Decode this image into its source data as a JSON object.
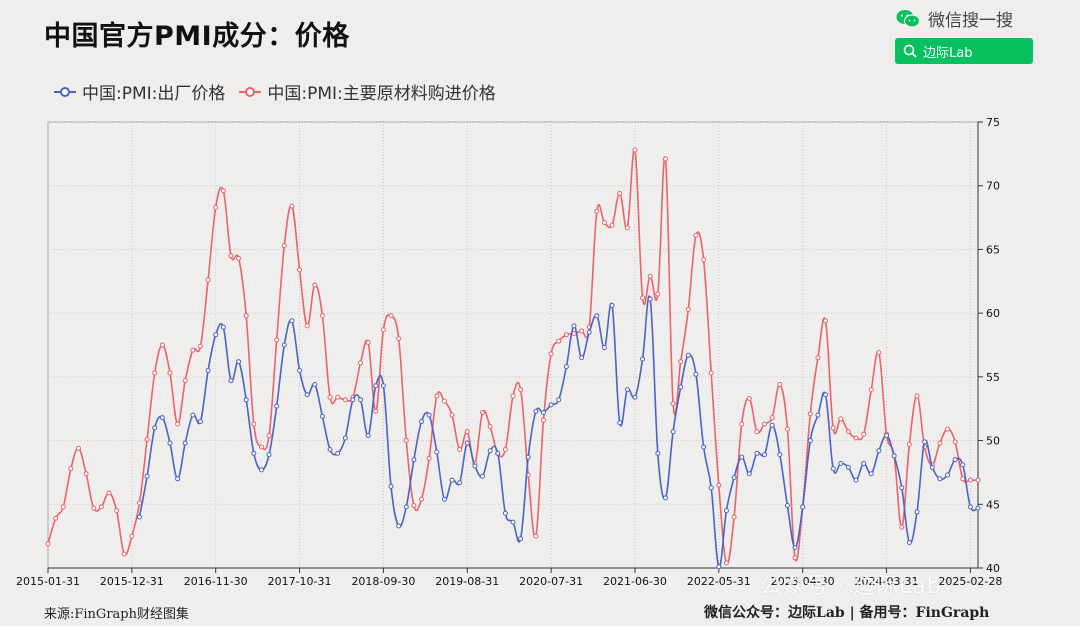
{
  "title": "中国官方PMI成分：价格",
  "wechat_search_label": "微信搜一搜",
  "search_button_text": "边际Lab",
  "footer_source": "来源:FinGraph财经图集",
  "footer_account": "微信公众号：边际Lab  |  备用号：FinGraph",
  "watermark_text": "公众号 · 边际Lab",
  "colors": {
    "blue": "#4a64c4",
    "red": "#e8646a",
    "wechat_green": "#07c160"
  },
  "chart_data": {
    "type": "line",
    "title": "中国官方PMI成分：价格",
    "x_tick_labels": [
      "2015-01-31",
      "2015-12-31",
      "2016-11-30",
      "2017-10-31",
      "2018-09-30",
      "2019-08-31",
      "2020-07-31",
      "2021-06-30",
      "2022-05-31",
      "2023-04-30",
      "2024-03-31",
      "2025-02-28"
    ],
    "x_start": "2015-01",
    "ylim": [
      40,
      75
    ],
    "yticks": [
      40,
      45,
      50,
      55,
      60,
      65,
      70,
      75
    ],
    "y_axis_side": "right",
    "grid": true,
    "legend_position": "top-left",
    "series": [
      {
        "name": "中国:PMI:出厂价格",
        "color": "#4a64c4",
        "values": [
          null,
          null,
          null,
          null,
          null,
          null,
          null,
          null,
          null,
          null,
          null,
          null,
          44.0,
          47.2,
          51.0,
          51.8,
          49.8,
          47.0,
          49.8,
          52.0,
          51.5,
          55.5,
          58.3,
          58.9,
          54.7,
          56.2,
          53.2,
          49.0,
          47.7,
          48.9,
          52.7,
          57.5,
          59.4,
          55.5,
          53.6,
          54.4,
          51.9,
          49.3,
          49.0,
          50.2,
          53.2,
          53.2,
          50.4,
          54.3,
          54.3,
          46.4,
          43.3,
          44.8,
          48.5,
          51.5,
          52.0,
          49.1,
          45.4,
          46.9,
          46.7,
          49.8,
          48.0,
          47.2,
          49.2,
          49.0,
          44.3,
          43.6,
          42.3,
          48.7,
          52.3,
          52.2,
          52.8,
          53.2,
          55.8,
          59.0,
          56.5,
          58.5,
          59.8,
          57.3,
          60.6,
          51.4,
          54.0,
          53.4,
          56.4,
          61.1,
          49.0,
          45.5,
          50.7,
          54.2,
          56.7,
          55.2,
          49.5,
          46.3,
          40.1,
          44.5,
          47.1,
          48.7,
          47.4,
          49.0,
          48.9,
          51.2,
          48.9,
          44.9,
          41.6,
          44.8,
          50.0,
          52.0,
          53.6,
          47.8,
          48.2,
          47.9,
          46.9,
          48.2,
          47.4,
          49.2,
          50.4,
          48.8,
          46.3,
          42.0,
          44.4,
          49.9,
          47.9,
          47.0,
          47.3,
          48.5,
          48.1,
          44.8,
          44.7
        ]
      },
      {
        "name": "中国:PMI:主要原材料购进价格",
        "color": "#e8646a",
        "values": [
          41.9,
          43.9,
          44.8,
          47.8,
          49.4,
          47.4,
          44.7,
          44.8,
          45.9,
          44.5,
          41.1,
          42.5,
          45.1,
          50.1,
          55.3,
          57.5,
          55.3,
          51.3,
          54.7,
          57.1,
          57.4,
          62.6,
          68.3,
          69.6,
          64.5,
          64.3,
          59.8,
          51.3,
          49.5,
          50.4,
          57.9,
          65.3,
          68.4,
          63.4,
          59.0,
          62.2,
          59.8,
          53.4,
          53.4,
          53.2,
          53.4,
          56.1,
          57.7,
          52.3,
          58.7,
          59.8,
          58.0,
          50.0,
          44.9,
          45.4,
          48.6,
          53.5,
          53.1,
          52.0,
          49.3,
          50.7,
          48.2,
          52.2,
          51.1,
          49.0,
          49.3,
          53.5,
          54.0,
          47.3,
          42.5,
          51.6,
          56.8,
          57.8,
          58.3,
          58.4,
          58.6,
          58.9,
          68.0,
          67.1,
          66.9,
          69.4,
          66.7,
          72.8,
          61.2,
          62.9,
          61.5,
          72.1,
          52.9,
          56.2,
          60.3,
          66.1,
          64.2,
          55.3,
          46.5,
          40.4,
          44.0,
          51.3,
          53.3,
          50.7,
          51.3,
          51.8,
          54.4,
          50.9,
          40.8,
          44.8,
          52.1,
          56.5,
          59.4,
          51.0,
          51.7,
          50.7,
          50.2,
          50.5,
          54.0,
          56.9,
          50.5,
          48.8,
          43.2,
          49.7,
          53.5,
          49.5,
          48.1,
          49.8,
          50.9,
          49.9,
          47.0,
          46.9,
          46.9
        ]
      }
    ]
  }
}
